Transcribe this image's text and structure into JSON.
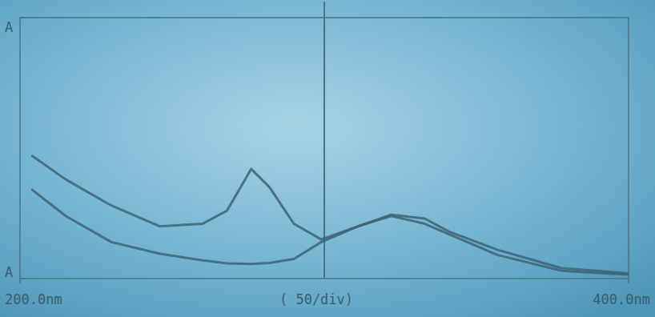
{
  "chart_data": {
    "type": "line",
    "x": [
      204,
      215,
      230,
      246,
      260,
      268,
      276,
      282,
      290,
      299,
      311,
      322,
      333,
      341,
      357,
      378,
      400
    ],
    "series": [
      {
        "color": "#3b6474",
        "values": [
          0.47,
          0.38,
          0.28,
          0.2,
          0.21,
          0.26,
          0.42,
          0.35,
          0.21,
          0.15,
          0.2,
          0.24,
          0.21,
          0.17,
          0.09,
          0.03,
          0.015
        ]
      },
      {
        "color": "#3b6474",
        "values": [
          0.34,
          0.24,
          0.14,
          0.095,
          0.07,
          0.058,
          0.056,
          0.06,
          0.075,
          0.14,
          0.2,
          0.245,
          0.23,
          0.18,
          0.11,
          0.04,
          0.02
        ]
      }
    ],
    "x_label": "(  50/div)",
    "xlim": [
      200,
      400
    ],
    "xticks": [
      {
        "value": 200,
        "label": "200.0nm"
      },
      {
        "value": 400,
        "label": "400.0nm"
      }
    ],
    "ylim": [
      0,
      1
    ],
    "yticks": [
      {
        "value": 0,
        "label": "A"
      },
      {
        "value": 1,
        "label": "A"
      }
    ],
    "grid": false
  }
}
